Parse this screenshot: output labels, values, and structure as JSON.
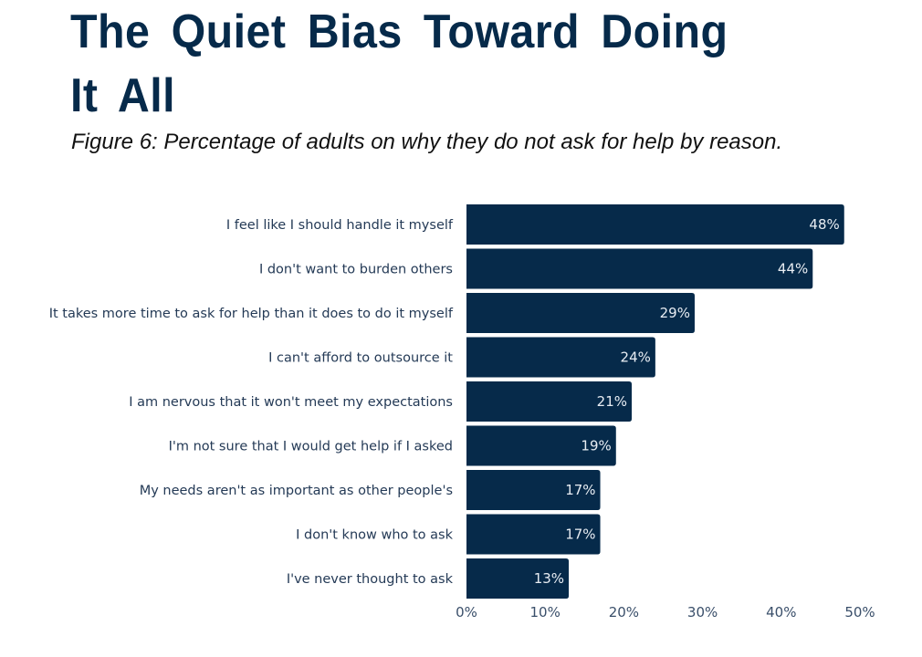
{
  "heading": "The Quiet Bias Toward Doing It All",
  "chart_data": {
    "type": "bar",
    "orientation": "horizontal",
    "title": "Figure 6: Percentage of adults on why they do not ask for help by reason.",
    "xlabel": "",
    "ylabel": "",
    "categories": [
      "I feel like I should handle it myself",
      "I don't want to burden others",
      "It takes more time to ask for help than it does to do it myself",
      "I can't afford to outsource it",
      "I am nervous that it won't meet my expectations",
      "I'm not sure that I would get help if I asked",
      "My needs aren't as important as other people's",
      "I don't know who to ask",
      "I've never thought to ask"
    ],
    "values": [
      48,
      44,
      29,
      24,
      21,
      19,
      17,
      17,
      13
    ],
    "value_labels": [
      "48%",
      "44%",
      "29%",
      "24%",
      "21%",
      "19%",
      "17%",
      "17%",
      "13%"
    ],
    "xlim": [
      0,
      50
    ],
    "x_ticks": [
      0,
      10,
      20,
      30,
      40,
      50
    ],
    "x_tick_labels": [
      "0%",
      "10%",
      "20%",
      "30%",
      "40%",
      "50%"
    ],
    "grid": false,
    "legend": "none",
    "bar_color": "#062a4a"
  }
}
